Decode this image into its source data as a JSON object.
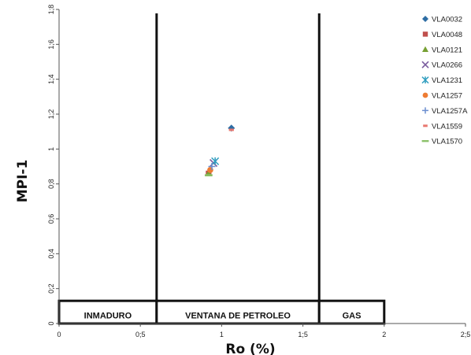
{
  "chart_data": {
    "type": "scatter",
    "xlabel": "Ro (%)",
    "ylabel": "MPI-1",
    "xlim": [
      0,
      2.5
    ],
    "ylim": [
      0,
      1.8
    ],
    "x_ticks": [
      {
        "value": 0,
        "label": "0"
      },
      {
        "value": 0.5,
        "label": "0;5"
      },
      {
        "value": 1,
        "label": "1"
      },
      {
        "value": 1.5,
        "label": "1;5"
      },
      {
        "value": 2,
        "label": "2"
      },
      {
        "value": 2.5,
        "label": "2;5"
      }
    ],
    "y_ticks": [
      {
        "value": 0,
        "label": "0"
      },
      {
        "value": 0.2,
        "label": "0;2"
      },
      {
        "value": 0.4,
        "label": "0;4"
      },
      {
        "value": 0.6,
        "label": "0;6"
      },
      {
        "value": 0.8,
        "label": "0;8"
      },
      {
        "value": 1,
        "label": "1"
      },
      {
        "value": 1.2,
        "label": "1;2"
      },
      {
        "value": 1.4,
        "label": "1;4"
      },
      {
        "value": 1.6,
        "label": "1;6"
      },
      {
        "value": 1.8,
        "label": "1;8"
      }
    ],
    "boundaries": [
      0.6,
      1.6
    ],
    "zones": [
      {
        "label": "INMADURO",
        "from": 0,
        "to": 0.6
      },
      {
        "label": "VENTANA DE PETROLEO",
        "from": 0.6,
        "to": 1.6
      },
      {
        "label": "GAS",
        "from": 1.6,
        "to": 2.0
      }
    ],
    "zone_band": [
      0,
      0.13
    ],
    "legend_position": "right",
    "series": [
      {
        "name": "VLA0032",
        "marker": "diamond",
        "color": "#2E6DA4",
        "points": [
          [
            1.06,
            1.12
          ]
        ]
      },
      {
        "name": "VLA0048",
        "marker": "square",
        "color": "#C0504D",
        "points": [
          [
            0.92,
            0.86
          ]
        ]
      },
      {
        "name": "VLA0121",
        "marker": "triangle",
        "color": "#77A033",
        "points": [
          [
            0.92,
            0.86
          ]
        ]
      },
      {
        "name": "VLA0266",
        "marker": "x",
        "color": "#7A5C9E",
        "points": [
          [
            0.95,
            0.92
          ]
        ]
      },
      {
        "name": "VLA1231",
        "marker": "star",
        "color": "#2E9DBF",
        "points": [
          [
            0.96,
            0.93
          ]
        ]
      },
      {
        "name": "VLA1257",
        "marker": "circle",
        "color": "#EE7C33",
        "points": [
          [
            0.93,
            0.88
          ]
        ]
      },
      {
        "name": "VLA1257A",
        "marker": "plus",
        "color": "#6C8FD0",
        "points": [
          [
            0.94,
            0.9
          ]
        ]
      },
      {
        "name": "VLA1559",
        "marker": "dash",
        "color": "#E8776F",
        "points": [
          [
            1.06,
            1.11
          ]
        ]
      },
      {
        "name": "VLA1570",
        "marker": "line",
        "color": "#8CC16A",
        "points": [
          [
            0.92,
            0.85
          ]
        ]
      }
    ]
  }
}
